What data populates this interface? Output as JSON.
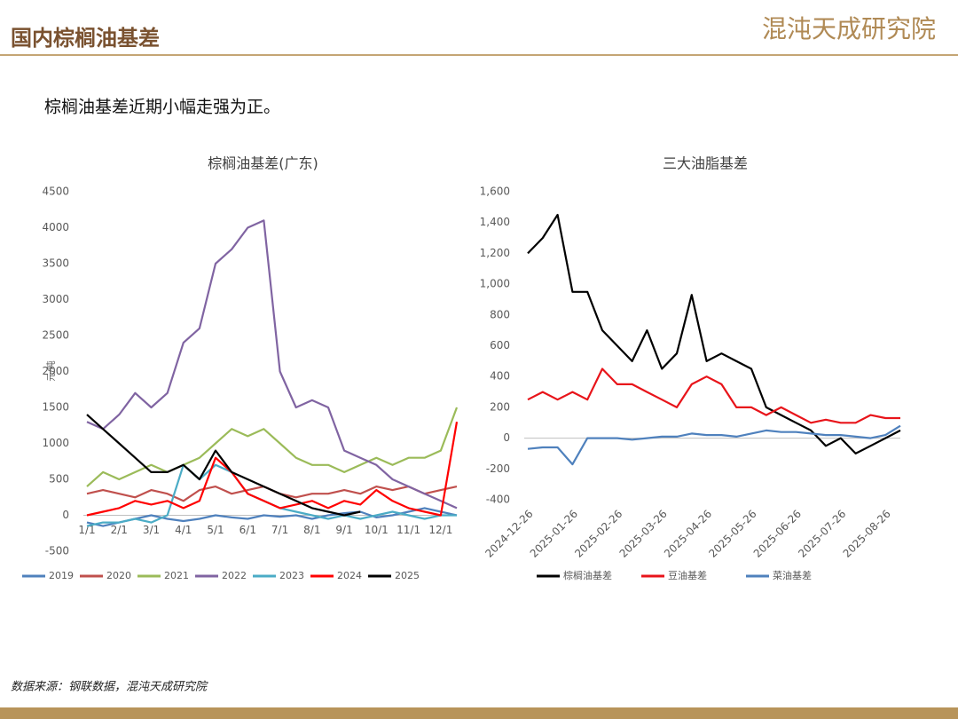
{
  "header": {
    "title": "国内棕榈油基差",
    "logo": "混沌天成研究院"
  },
  "subtitle": "棕榈油基差近期小幅走强为正。",
  "source": "数据来源：钢联数据，混沌天成研究院",
  "chart_data": [
    {
      "type": "line",
      "title": "棕榈油基差(广东)",
      "y_label": "元/吨",
      "categories": [
        "1/1",
        null,
        "2/1",
        null,
        "3/1",
        null,
        "4/1",
        null,
        "5/1",
        null,
        "6/1",
        null,
        "7/1",
        null,
        "8/1",
        null,
        "9/1",
        null,
        "10/1",
        null,
        "11/1",
        null,
        "12/1",
        null
      ],
      "ylim": [
        -500,
        4500
      ],
      "yticks": [
        -500,
        0,
        500,
        1000,
        1500,
        2000,
        2500,
        3000,
        3500,
        4000,
        4500
      ],
      "legend": "bottom",
      "series": [
        {
          "name": "2019",
          "color": "#4f81bd",
          "values": [
            -100,
            -150,
            -100,
            -50,
            0,
            -50,
            -80,
            -50,
            0,
            -30,
            -50,
            0,
            -20,
            0,
            -50,
            0,
            30,
            50,
            -30,
            0,
            50,
            100,
            50,
            0
          ]
        },
        {
          "name": "2020",
          "color": "#c0504d",
          "values": [
            300,
            350,
            300,
            250,
            350,
            300,
            200,
            350,
            400,
            300,
            350,
            400,
            300,
            250,
            300,
            300,
            350,
            300,
            400,
            350,
            400,
            300,
            350,
            400
          ]
        },
        {
          "name": "2021",
          "color": "#9bbb59",
          "values": [
            400,
            600,
            500,
            600,
            700,
            600,
            700,
            800,
            1000,
            1200,
            1100,
            1200,
            1000,
            800,
            700,
            700,
            600,
            700,
            800,
            700,
            800,
            800,
            900,
            1500
          ]
        },
        {
          "name": "2022",
          "color": "#8064a2",
          "values": [
            1300,
            1200,
            1400,
            1700,
            1500,
            1700,
            2400,
            2600,
            3500,
            3700,
            4000,
            4100,
            2000,
            1500,
            1600,
            1500,
            900,
            800,
            700,
            500,
            400,
            300,
            200,
            100
          ]
        },
        {
          "name": "2023",
          "color": "#4bacc6",
          "values": [
            -150,
            -100,
            -100,
            -50,
            -100,
            0,
            700,
            500,
            700,
            600,
            300,
            200,
            100,
            50,
            0,
            -50,
            0,
            -50,
            0,
            50,
            0,
            -50,
            0,
            0
          ]
        },
        {
          "name": "2024",
          "color": "#ff0000",
          "values": [
            0,
            50,
            100,
            200,
            150,
            200,
            100,
            200,
            800,
            600,
            300,
            200,
            100,
            150,
            200,
            100,
            200,
            150,
            350,
            200,
            100,
            50,
            0,
            1300
          ]
        },
        {
          "name": "2025",
          "color": "#000000",
          "values": [
            1400,
            1200,
            1000,
            800,
            600,
            600,
            700,
            500,
            900,
            600,
            500,
            400,
            300,
            200,
            100,
            50,
            0,
            50,
            null,
            null,
            null,
            null,
            null,
            null
          ]
        }
      ]
    },
    {
      "type": "line",
      "title": "三大油脂基差",
      "categories": [
        "2024-12-26",
        null,
        null,
        "2025-01-26",
        null,
        null,
        "2025-02-26",
        null,
        null,
        "2025-03-26",
        null,
        null,
        "2025-04-26",
        null,
        null,
        "2025-05-26",
        null,
        null,
        "2025-06-26",
        null,
        null,
        "2025-07-26",
        null,
        null,
        "2025-08-26",
        null
      ],
      "ylim": [
        -400,
        1600
      ],
      "yticks": [
        -400,
        -200,
        0,
        200,
        400,
        600,
        800,
        {
          "value": 1000,
          "label": "1,000"
        },
        {
          "value": 1200,
          "label": "1,200"
        },
        {
          "value": 1400,
          "label": "1,400"
        },
        {
          "value": 1600,
          "label": "1,600"
        }
      ],
      "legend": "bottom",
      "series": [
        {
          "name": "棕榈油基差",
          "color": "#000000",
          "values": [
            1200,
            1300,
            1450,
            950,
            950,
            700,
            600,
            500,
            700,
            450,
            550,
            930,
            500,
            550,
            500,
            450,
            200,
            150,
            100,
            50,
            -50,
            0,
            -100,
            -50,
            0,
            50
          ]
        },
        {
          "name": "豆油基差",
          "color": "#e8141a",
          "values": [
            250,
            300,
            250,
            300,
            250,
            450,
            350,
            350,
            300,
            250,
            200,
            350,
            400,
            350,
            200,
            200,
            150,
            200,
            150,
            100,
            120,
            100,
            100,
            150,
            130,
            130
          ]
        },
        {
          "name": "菜油基差",
          "color": "#4f81bd",
          "values": [
            -70,
            -60,
            -60,
            -170,
            0,
            0,
            0,
            -10,
            0,
            10,
            10,
            30,
            20,
            20,
            10,
            30,
            50,
            40,
            40,
            30,
            20,
            20,
            10,
            0,
            20,
            80
          ]
        }
      ]
    }
  ]
}
